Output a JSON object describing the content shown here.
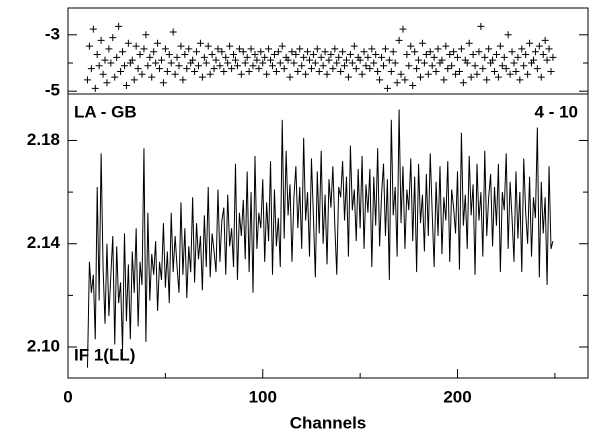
{
  "chart_data": [
    {
      "type": "scatter",
      "color": "#000000",
      "x": [
        10,
        11,
        12,
        13,
        14,
        15,
        16,
        17,
        18,
        19,
        20,
        21,
        22,
        23,
        24,
        25,
        26,
        27,
        28,
        29,
        30,
        31,
        32,
        33,
        34,
        35,
        36,
        37,
        38,
        39,
        40,
        41,
        42,
        43,
        44,
        45,
        46,
        47,
        48,
        49,
        50,
        51,
        52,
        53,
        54,
        55,
        56,
        57,
        58,
        59,
        60,
        61,
        62,
        63,
        64,
        65,
        66,
        67,
        68,
        69,
        70,
        71,
        72,
        73,
        74,
        75,
        76,
        77,
        78,
        79,
        80,
        81,
        82,
        83,
        84,
        85,
        86,
        87,
        88,
        89,
        90,
        91,
        92,
        93,
        94,
        95,
        96,
        97,
        98,
        99,
        100,
        101,
        102,
        103,
        104,
        105,
        106,
        107,
        108,
        109,
        110,
        111,
        112,
        113,
        114,
        115,
        116,
        117,
        118,
        119,
        120,
        121,
        122,
        123,
        124,
        125,
        126,
        127,
        128,
        129,
        130,
        131,
        132,
        133,
        134,
        135,
        136,
        137,
        138,
        139,
        140,
        141,
        142,
        143,
        144,
        145,
        146,
        147,
        148,
        149,
        150,
        151,
        152,
        153,
        154,
        155,
        156,
        157,
        158,
        159,
        160,
        161,
        162,
        163,
        164,
        165,
        166,
        167,
        168,
        169,
        170,
        171,
        172,
        173,
        174,
        175,
        176,
        177,
        178,
        179,
        180,
        181,
        182,
        183,
        184,
        185,
        186,
        187,
        188,
        189,
        190,
        191,
        192,
        193,
        194,
        195,
        196,
        197,
        198,
        199,
        200,
        201,
        202,
        203,
        204,
        205,
        206,
        207,
        208,
        209,
        210,
        211,
        212,
        213,
        214,
        215,
        216,
        217,
        218,
        219,
        220,
        221,
        222,
        223,
        224,
        225,
        226,
        227,
        228,
        229,
        230,
        231,
        232,
        233,
        234,
        235,
        236,
        237,
        238,
        239,
        240,
        241,
        242,
        243,
        244,
        245,
        246,
        247,
        248,
        249
      ],
      "values": [
        -4.6,
        -3.4,
        -4.2,
        -2.8,
        -4.9,
        -3.7,
        -4.1,
        -3.2,
        -4.4,
        -3.9,
        -4.7,
        -3.5,
        -4.0,
        -3.1,
        -4.5,
        -3.8,
        -2.7,
        -4.3,
        -3.6,
        -4.1,
        -4.8,
        -3.3,
        -4.0,
        -3.9,
        -4.6,
        -3.4,
        -4.2,
        -3.7,
        -4.4,
        -3.5,
        -3.0,
        -4.1,
        -3.8,
        -4.5,
        -3.6,
        -4.0,
        -3.3,
        -4.2,
        -3.9,
        -4.7,
        -3.5,
        -4.3,
        -3.7,
        -4.0,
        -2.9,
        -4.4,
        -3.8,
        -4.1,
        -3.4,
        -4.6,
        -3.7,
        -4.2,
        -3.5,
        -4.0,
        -3.9,
        -4.3,
        -3.6,
        -4.1,
        -3.3,
        -4.5,
        -3.8,
        -4.0,
        -3.4,
        -4.4,
        -3.7,
        -4.2,
        -3.9,
        -3.5,
        -4.1,
        -3.6,
        -4.3,
        -3.8,
        -4.0,
        -3.4,
        -4.2,
        -3.7,
        -3.9,
        -4.1,
        -3.5,
        -4.4,
        -3.6,
        -4.0,
        -3.8,
        -4.3,
        -3.5,
        -4.1,
        -3.7,
        -3.9,
        -4.2,
        -3.6,
        -4.0,
        -3.8,
        -4.4,
        -3.5,
        -3.9,
        -4.1,
        -3.7,
        -4.3,
        -3.6,
        -4.0,
        -3.4,
        -4.2,
        -3.8,
        -3.9,
        -4.5,
        -3.6,
        -4.0,
        -3.7,
        -4.3,
        -3.5,
        -4.1,
        -3.8,
        -4.4,
        -3.6,
        -3.9,
        -4.2,
        -3.7,
        -4.0,
        -3.5,
        -4.3,
        -3.8,
        -4.1,
        -3.6,
        -4.4,
        -3.9,
        -3.7,
        -4.2,
        -3.5,
        -4.0,
        -3.8,
        -4.3,
        -3.6,
        -4.1,
        -3.9,
        -4.5,
        -3.7,
        -4.0,
        -3.4,
        -4.2,
        -3.8,
        -3.9,
        -4.4,
        -3.6,
        -4.1,
        -3.8,
        -4.2,
        -3.5,
        -4.0,
        -3.7,
        -4.3,
        -4.6,
        -3.8,
        -4.1,
        -3.5,
        -4.9,
        -3.9,
        -4.3,
        -3.6,
        -4.0,
        -4.7,
        -3.2,
        -4.4,
        -2.8,
        -4.6,
        -3.7,
        -4.1,
        -3.4,
        -4.8,
        -3.6,
        -4.2,
        -3.9,
        -4.5,
        -3.3,
        -4.0,
        -3.7,
        -4.4,
        -3.6,
        -4.1,
        -3.8,
        -4.3,
        -3.5,
        -4.0,
        -3.9,
        -4.6,
        -3.4,
        -4.2,
        -3.7,
        -4.1,
        -3.6,
        -4.4,
        -3.8,
        -4.3,
        -3.5,
        -4.7,
        -3.9,
        -4.0,
        -3.3,
        -4.5,
        -3.7,
        -4.1,
        -4.4,
        -3.6,
        -2.7,
        -4.2,
        -3.8,
        -4.6,
        -3.5,
        -4.0,
        -3.9,
        -4.3,
        -3.7,
        -4.5,
        -3.4,
        -4.1,
        -3.8,
        -4.2,
        -3.0,
        -4.4,
        -3.6,
        -4.0,
        -4.3,
        -3.8,
        -4.6,
        -3.5,
        -4.1,
        -3.7,
        -4.4,
        -3.3,
        -4.0,
        -3.9,
        -3.6,
        -4.2,
        -3.4,
        -4.5,
        -3.7,
        -3.2,
        -3.9,
        -3.5,
        -4.3,
        -3.8
      ],
      "xlim": [
        0,
        267
      ],
      "ylim": [
        -5.1,
        -2.05
      ],
      "yticks": [
        -3,
        -5
      ],
      "yminor": [
        -4
      ]
    },
    {
      "type": "line",
      "color": "#000000",
      "labels": [
        "LA - GB",
        "4 - 10",
        "IF 1(LL)"
      ],
      "x_label": "Channels",
      "x": [
        10,
        11,
        12,
        13,
        14,
        15,
        16,
        17,
        18,
        19,
        20,
        21,
        22,
        23,
        24,
        25,
        26,
        27,
        28,
        29,
        30,
        31,
        32,
        33,
        34,
        35,
        36,
        37,
        38,
        39,
        40,
        41,
        42,
        43,
        44,
        45,
        46,
        47,
        48,
        49,
        50,
        51,
        52,
        53,
        54,
        55,
        56,
        57,
        58,
        59,
        60,
        61,
        62,
        63,
        64,
        65,
        66,
        67,
        68,
        69,
        70,
        71,
        72,
        73,
        74,
        75,
        76,
        77,
        78,
        79,
        80,
        81,
        82,
        83,
        84,
        85,
        86,
        87,
        88,
        89,
        90,
        91,
        92,
        93,
        94,
        95,
        96,
        97,
        98,
        99,
        100,
        101,
        102,
        103,
        104,
        105,
        106,
        107,
        108,
        109,
        110,
        111,
        112,
        113,
        114,
        115,
        116,
        117,
        118,
        119,
        120,
        121,
        122,
        123,
        124,
        125,
        126,
        127,
        128,
        129,
        130,
        131,
        132,
        133,
        134,
        135,
        136,
        137,
        138,
        139,
        140,
        141,
        142,
        143,
        144,
        145,
        146,
        147,
        148,
        149,
        150,
        151,
        152,
        153,
        154,
        155,
        156,
        157,
        158,
        159,
        160,
        161,
        162,
        163,
        164,
        165,
        166,
        167,
        168,
        169,
        170,
        171,
        172,
        173,
        174,
        175,
        176,
        177,
        178,
        179,
        180,
        181,
        182,
        183,
        184,
        185,
        186,
        187,
        188,
        189,
        190,
        191,
        192,
        193,
        194,
        195,
        196,
        197,
        198,
        199,
        200,
        201,
        202,
        203,
        204,
        205,
        206,
        207,
        208,
        209,
        210,
        211,
        212,
        213,
        214,
        215,
        216,
        217,
        218,
        219,
        220,
        221,
        222,
        223,
        224,
        225,
        226,
        227,
        228,
        229,
        230,
        231,
        232,
        233,
        234,
        235,
        236,
        237,
        238,
        239,
        240,
        241,
        242,
        243,
        244,
        245,
        246,
        247,
        248,
        249
      ],
      "values": [
        2.092,
        2.133,
        2.121,
        2.128,
        2.103,
        2.162,
        2.118,
        2.175,
        2.131,
        2.109,
        2.14,
        2.112,
        2.128,
        2.143,
        2.101,
        2.139,
        2.117,
        2.125,
        2.099,
        2.144,
        2.11,
        2.132,
        2.103,
        2.137,
        2.121,
        2.146,
        2.108,
        2.133,
        2.124,
        2.177,
        2.102,
        2.152,
        2.118,
        2.136,
        2.128,
        2.141,
        2.114,
        2.133,
        2.126,
        2.148,
        2.123,
        2.137,
        2.117,
        2.152,
        2.129,
        2.143,
        2.131,
        2.121,
        2.156,
        2.128,
        2.146,
        2.119,
        2.139,
        2.129,
        2.158,
        2.125,
        2.148,
        2.134,
        2.143,
        2.122,
        2.151,
        2.131,
        2.162,
        2.127,
        2.144,
        2.137,
        2.129,
        2.161,
        2.133,
        2.149,
        2.154,
        2.128,
        2.159,
        2.139,
        2.146,
        2.131,
        2.171,
        2.126,
        2.152,
        2.143,
        2.157,
        2.134,
        2.168,
        2.129,
        2.16,
        2.121,
        2.174,
        2.138,
        2.152,
        2.146,
        2.165,
        2.133,
        2.156,
        2.141,
        2.172,
        2.128,
        2.161,
        2.139,
        2.15,
        2.131,
        2.188,
        2.142,
        2.176,
        2.151,
        2.163,
        2.133,
        2.158,
        2.17,
        2.146,
        2.162,
        2.138,
        2.181,
        2.149,
        2.16,
        2.135,
        2.173,
        2.151,
        2.127,
        2.168,
        2.144,
        2.176,
        2.14,
        2.159,
        2.132,
        2.165,
        2.154,
        2.17,
        2.147,
        2.128,
        2.162,
        2.158,
        2.172,
        2.149,
        2.166,
        2.135,
        2.178,
        2.153,
        2.161,
        2.141,
        2.169,
        2.146,
        2.174,
        2.138,
        2.163,
        2.152,
        2.169,
        2.131,
        2.166,
        2.147,
        2.177,
        2.139,
        2.159,
        2.171,
        2.143,
        2.165,
        2.126,
        2.188,
        2.151,
        2.162,
        2.135,
        2.192,
        2.148,
        2.17,
        2.138,
        2.161,
        2.153,
        2.173,
        2.141,
        2.166,
        2.129,
        2.171,
        2.148,
        2.159,
        2.137,
        2.167,
        2.143,
        2.175,
        2.152,
        2.131,
        2.164,
        2.143,
        2.17,
        2.136,
        2.158,
        2.149,
        2.172,
        2.133,
        2.161,
        2.154,
        2.144,
        2.168,
        2.13,
        2.183,
        2.147,
        2.159,
        2.138,
        2.174,
        2.151,
        2.163,
        2.128,
        2.171,
        2.149,
        2.16,
        2.135,
        2.176,
        2.143,
        2.158,
        2.167,
        2.139,
        2.162,
        2.147,
        2.171,
        2.129,
        2.16,
        2.153,
        2.175,
        2.138,
        2.164,
        2.15,
        2.133,
        2.168,
        2.142,
        2.16,
        2.129,
        2.173,
        2.152,
        2.14,
        2.166,
        2.135,
        2.158,
        2.15,
        2.185,
        2.127,
        2.164,
        2.144,
        2.158,
        2.124,
        2.17,
        2.138,
        2.141
      ],
      "xlim": [
        0,
        267
      ],
      "xticks": [
        0,
        100,
        200
      ],
      "xminor": [
        50,
        150,
        250
      ],
      "ylim": [
        2.088,
        2.198
      ],
      "yticks": [
        {
          "value": 2.1,
          "label": "2.10"
        },
        {
          "value": 2.14,
          "label": "2.14"
        },
        {
          "value": 2.18,
          "label": "2.18"
        }
      ],
      "yminor": [
        2.12,
        2.16
      ]
    }
  ]
}
